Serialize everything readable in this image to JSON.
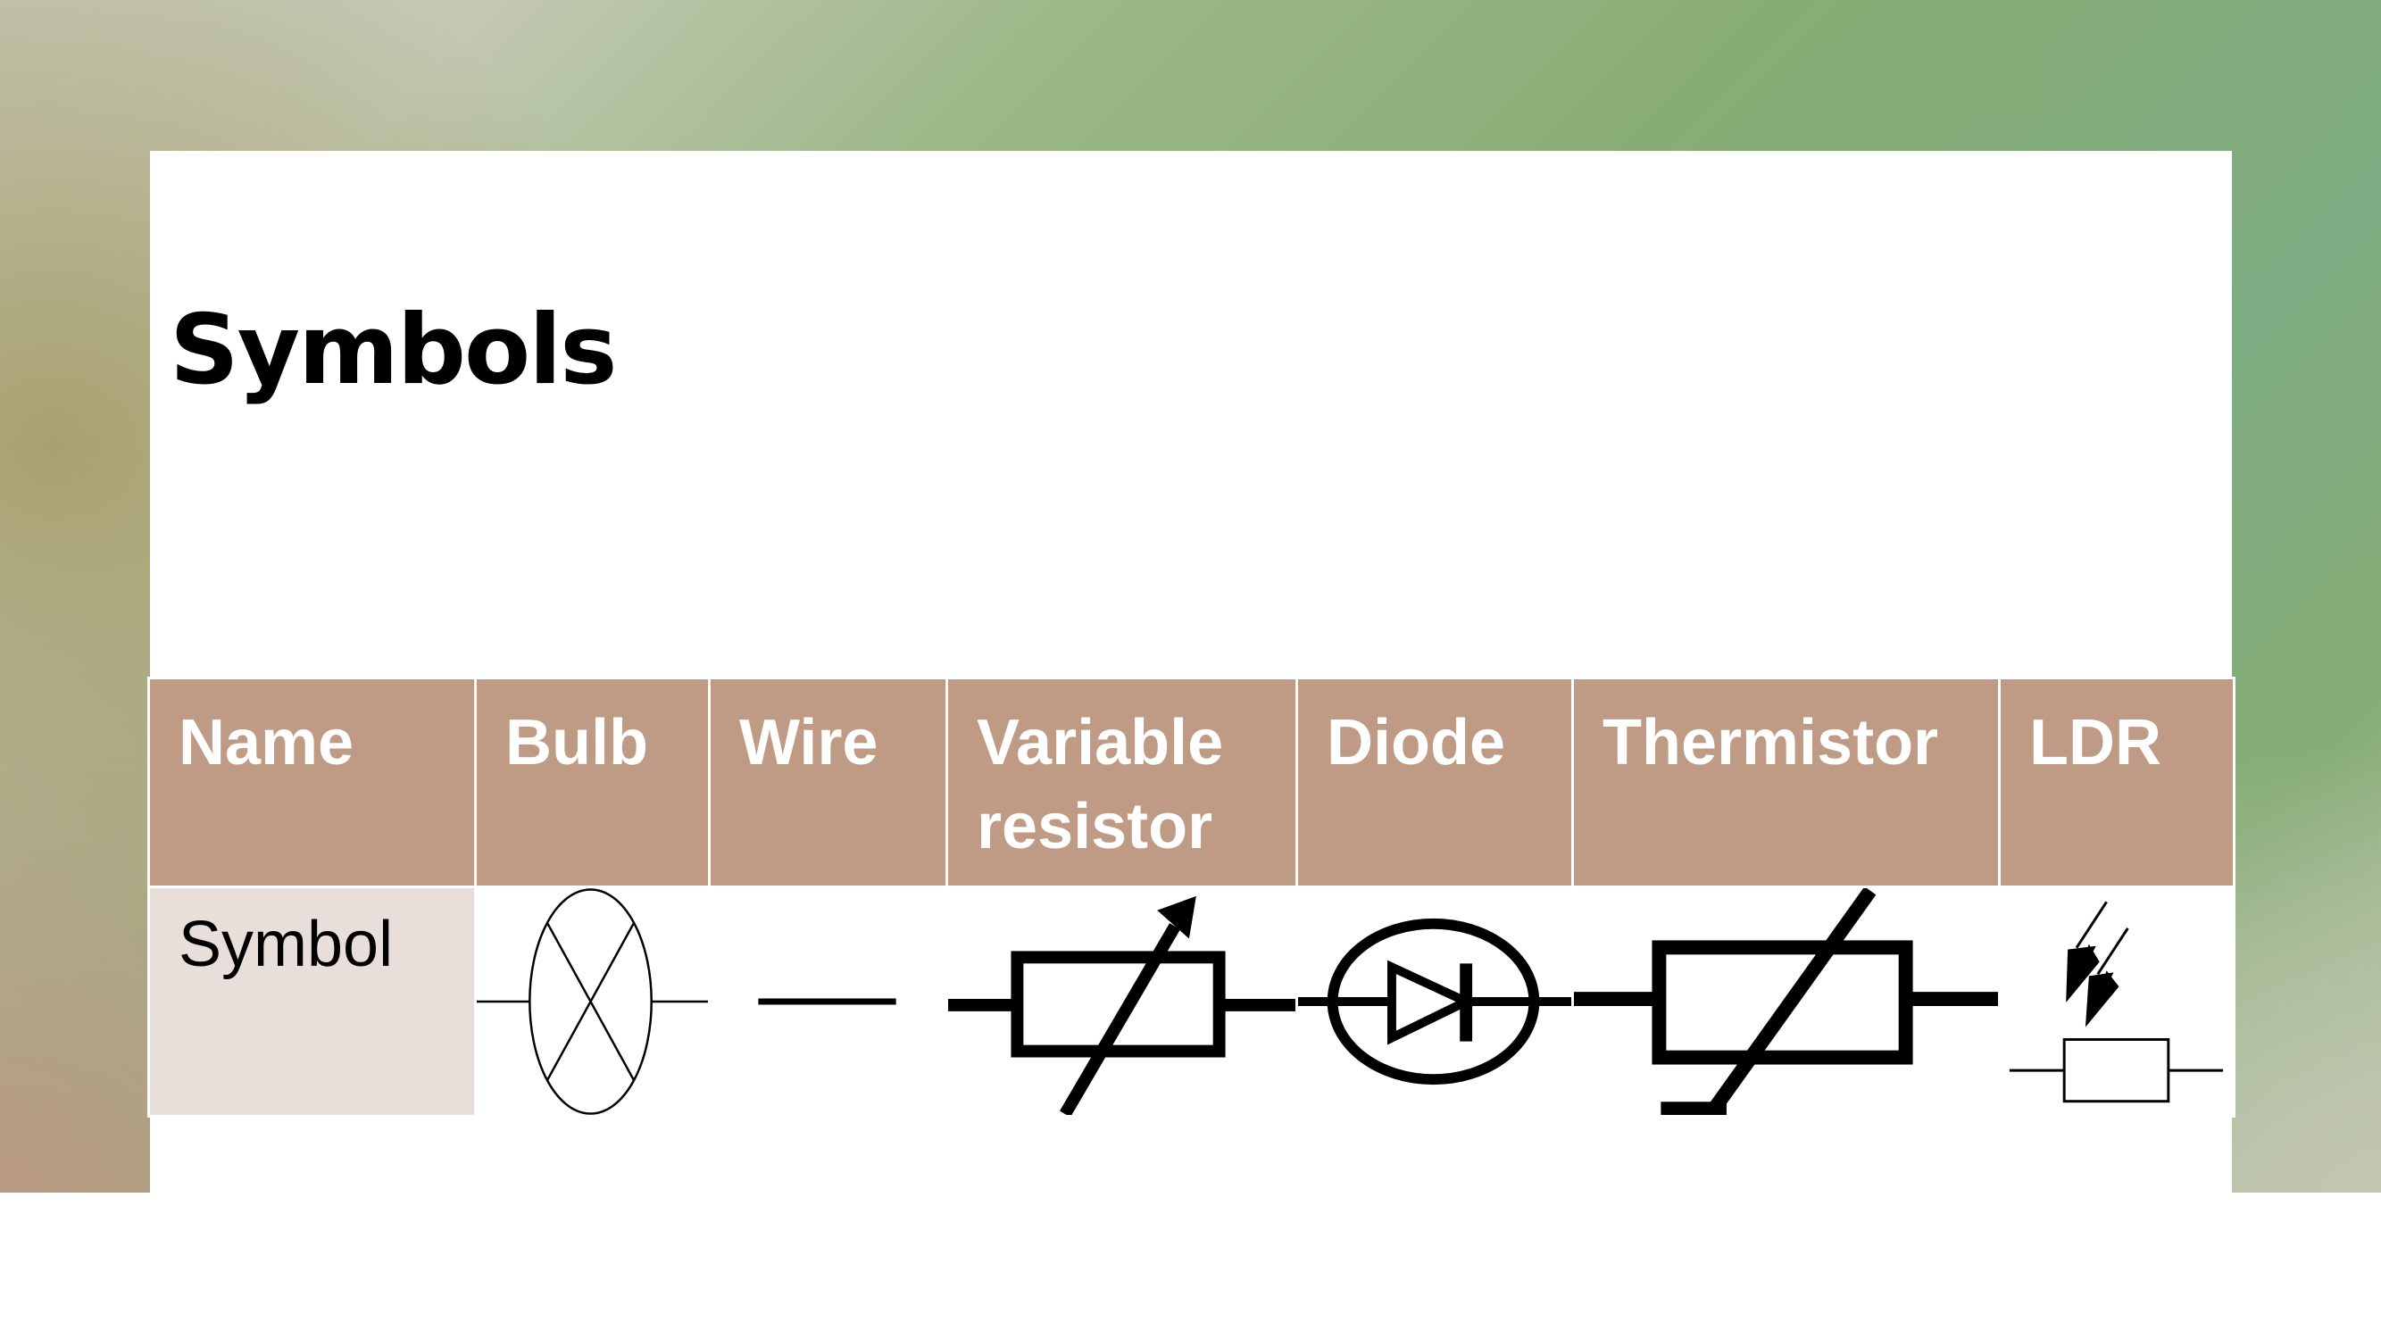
{
  "slide": {
    "title": "Symbols"
  },
  "table": {
    "headers": [
      "Name",
      "Bulb",
      "Wire",
      "Variable resistor",
      "Diode",
      "Thermistor",
      "LDR"
    ],
    "row_label": "Symbol",
    "symbols": [
      "bulb-symbol-icon",
      "wire-symbol-icon",
      "variable-resistor-symbol-icon",
      "diode-symbol-icon",
      "thermistor-symbol-icon",
      "ldr-symbol-icon"
    ]
  },
  "colors": {
    "header_fill": "#bf9b85",
    "label_fill": "#e8dfda",
    "header_text": "#ffffff"
  }
}
